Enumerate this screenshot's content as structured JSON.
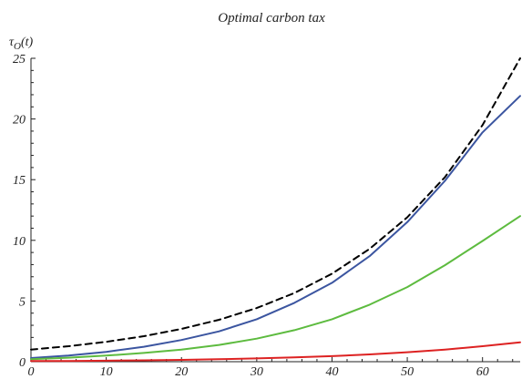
{
  "chart_data": {
    "type": "line",
    "title": "Optimal carbon tax",
    "ylabel_main": "τ",
    "ylabel_sub": "O",
    "ylabel_arg": "(t)",
    "xlim": [
      0,
      65
    ],
    "ylim": [
      0,
      25
    ],
    "xticks": [
      0,
      10,
      20,
      30,
      40,
      50,
      60
    ],
    "yticks": [
      0,
      5,
      10,
      15,
      20,
      25
    ],
    "grid": false,
    "x": [
      0,
      5,
      10,
      15,
      20,
      25,
      30,
      35,
      40,
      45,
      50,
      55,
      60,
      65
    ],
    "series": [
      {
        "color": "#000000",
        "dash": "7,5",
        "values": [
          1.0,
          1.28,
          1.64,
          2.1,
          2.7,
          3.45,
          4.42,
          5.66,
          7.25,
          9.3,
          11.9,
          15.2,
          19.5,
          25.0
        ]
      },
      {
        "color": "#3b55a0",
        "dash": "",
        "values": [
          0.3,
          0.51,
          0.81,
          1.23,
          1.79,
          2.5,
          3.5,
          4.85,
          6.5,
          8.7,
          11.5,
          14.9,
          18.9,
          21.9
        ]
      },
      {
        "color": "#5dbb3f",
        "dash": "",
        "values": [
          0.2,
          0.33,
          0.5,
          0.72,
          1.0,
          1.38,
          1.9,
          2.6,
          3.5,
          4.7,
          6.15,
          7.95,
          9.95,
          12.0
        ]
      },
      {
        "color": "#dd2222",
        "dash": "",
        "values": [
          0.05,
          0.06,
          0.08,
          0.11,
          0.15,
          0.2,
          0.27,
          0.35,
          0.46,
          0.6,
          0.78,
          1.0,
          1.28,
          1.6
        ]
      }
    ]
  }
}
